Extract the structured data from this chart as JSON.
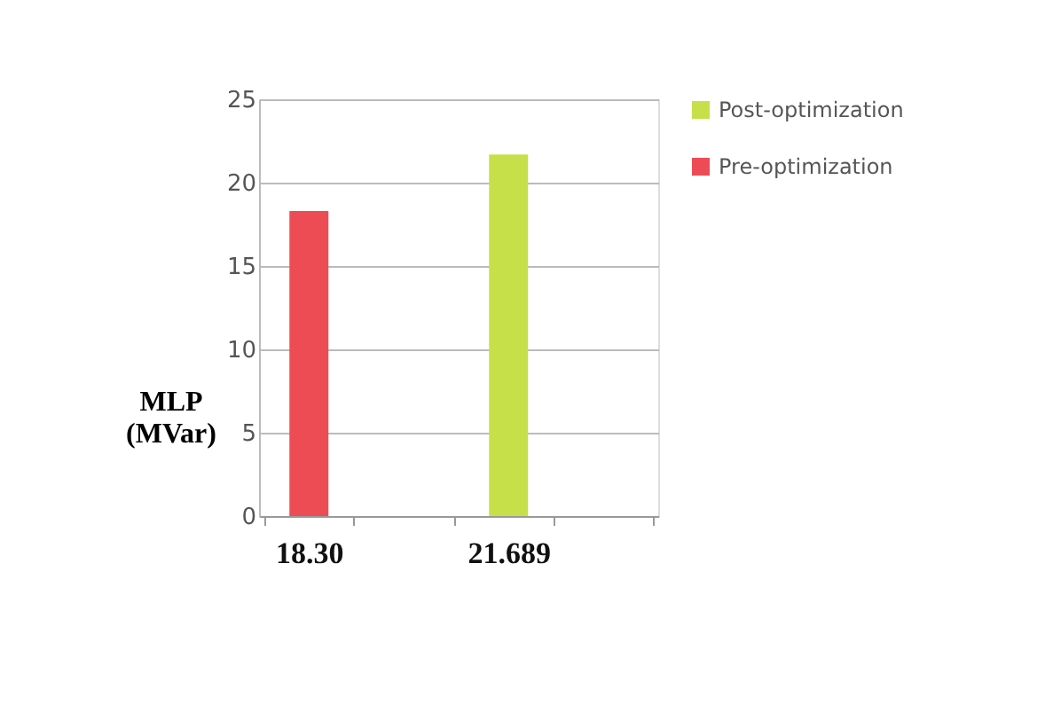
{
  "chart_data": {
    "type": "bar",
    "ylabel": "MLP (MVar)",
    "categories": [
      "18.30",
      null,
      "21.689",
      null
    ],
    "series": [
      {
        "name": "Post-optimization",
        "color": "#c6e04a",
        "values": [
          null,
          null,
          21.689,
          null
        ]
      },
      {
        "name": "Pre-optimization",
        "color": "#ee4c55",
        "values": [
          18.3,
          null,
          null,
          null
        ]
      }
    ],
    "ylim": [
      0,
      25
    ],
    "yticks": [
      0,
      5,
      10,
      15,
      20,
      25
    ],
    "grid": "y",
    "legend": "right"
  }
}
